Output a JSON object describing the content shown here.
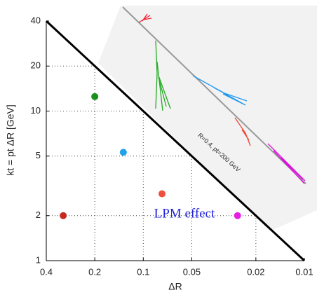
{
  "chart_data": {
    "type": "scatter",
    "xlabel": "ΔR",
    "ylabel": "kt = pt ΔR [GeV]",
    "xlog": true,
    "ylog": true,
    "xreversed": true,
    "xlim": [
      0.4,
      0.01
    ],
    "ylim": [
      1,
      40
    ],
    "xticks": [
      0.4,
      0.2,
      0.1,
      0.05,
      0.02,
      0.01
    ],
    "yticks": [
      1,
      2,
      5,
      10,
      20,
      40
    ],
    "grid": true,
    "points": {
      "x": [
        0.314,
        0.2,
        0.133,
        0.0765,
        0.026
      ],
      "y": [
        2,
        12.5,
        5.3,
        2.8,
        2
      ],
      "colors": [
        "#c42a1e",
        "#1b8f1b",
        "#22a3e8",
        "#f04e3e",
        "#e61ee6"
      ]
    },
    "boundary": {
      "x": [
        0.4,
        0.01
      ],
      "y": [
        40,
        1
      ],
      "color": "#000000"
    },
    "annotations": [
      "LPM effect",
      "R=0.4,  pt=200 GeV"
    ]
  }
}
